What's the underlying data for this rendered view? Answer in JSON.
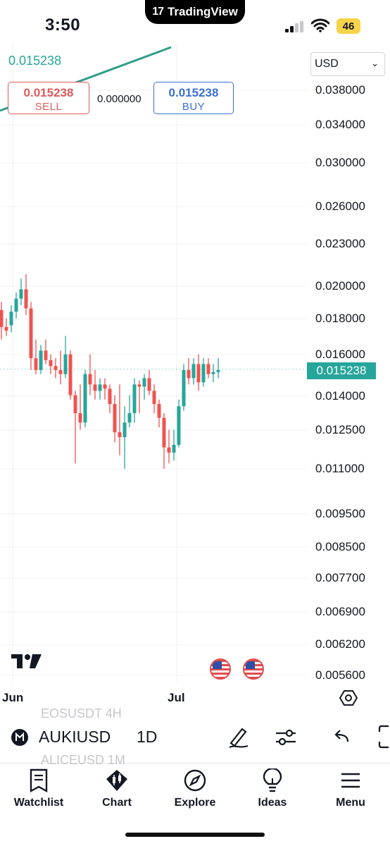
{
  "status_bar": {
    "time": "3:50",
    "app_name": "TradingView",
    "battery": "46"
  },
  "chart": {
    "currency": "USD",
    "price_axis": [
      "0.038000",
      "0.034000",
      "0.030000",
      "0.026000",
      "0.023000",
      "0.020000",
      "0.018000",
      "0.016000",
      "0.014000",
      "0.012500",
      "0.011000",
      "0.009500",
      "0.008500",
      "0.007700",
      "0.006900",
      "0.006200",
      "0.005600"
    ],
    "current_price": "0.015238",
    "line_price": "0.015238",
    "sell": {
      "price": "0.015238",
      "label": "SELL"
    },
    "buy": {
      "price": "0.015238",
      "label": "BUY"
    },
    "spread": "0.000000",
    "dates": [
      "Jun",
      "Jul"
    ],
    "colors": {
      "up": "#26a69a",
      "down": "#ef5350",
      "sell": "#e0595a",
      "buy": "#3a6fd8"
    }
  },
  "chart_data": {
    "type": "candlestick",
    "scale": "log",
    "candles": [
      {
        "o": 0.0185,
        "h": 0.019,
        "l": 0.0168,
        "c": 0.0175
      },
      {
        "o": 0.0175,
        "h": 0.018,
        "l": 0.017,
        "c": 0.0173
      },
      {
        "o": 0.0176,
        "h": 0.0188,
        "l": 0.0172,
        "c": 0.0184
      },
      {
        "o": 0.0184,
        "h": 0.0196,
        "l": 0.018,
        "c": 0.0192
      },
      {
        "o": 0.0192,
        "h": 0.0205,
        "l": 0.0188,
        "c": 0.0198
      },
      {
        "o": 0.0198,
        "h": 0.0208,
        "l": 0.0182,
        "c": 0.0186
      },
      {
        "o": 0.0186,
        "h": 0.019,
        "l": 0.0152,
        "c": 0.0158
      },
      {
        "o": 0.0158,
        "h": 0.0168,
        "l": 0.015,
        "c": 0.0152
      },
      {
        "o": 0.0152,
        "h": 0.0165,
        "l": 0.015,
        "c": 0.0162
      },
      {
        "o": 0.0162,
        "h": 0.0168,
        "l": 0.0155,
        "c": 0.0157
      },
      {
        "o": 0.0157,
        "h": 0.016,
        "l": 0.015,
        "c": 0.0154
      },
      {
        "o": 0.0154,
        "h": 0.0158,
        "l": 0.0148,
        "c": 0.0152
      },
      {
        "o": 0.0152,
        "h": 0.0162,
        "l": 0.0145,
        "c": 0.015
      },
      {
        "o": 0.015,
        "h": 0.017,
        "l": 0.0148,
        "c": 0.016
      },
      {
        "o": 0.016,
        "h": 0.0162,
        "l": 0.0138,
        "c": 0.014
      },
      {
        "o": 0.014,
        "h": 0.0142,
        "l": 0.0112,
        "c": 0.0132
      },
      {
        "o": 0.0132,
        "h": 0.0145,
        "l": 0.0125,
        "c": 0.0128
      },
      {
        "o": 0.0128,
        "h": 0.0152,
        "l": 0.0126,
        "c": 0.015
      },
      {
        "o": 0.015,
        "h": 0.016,
        "l": 0.014,
        "c": 0.0145
      },
      {
        "o": 0.0145,
        "h": 0.0152,
        "l": 0.0138,
        "c": 0.0142
      },
      {
        "o": 0.0142,
        "h": 0.0148,
        "l": 0.0138,
        "c": 0.0145
      },
      {
        "o": 0.0145,
        "h": 0.0148,
        "l": 0.0138,
        "c": 0.0143
      },
      {
        "o": 0.0143,
        "h": 0.0145,
        "l": 0.0132,
        "c": 0.0136
      },
      {
        "o": 0.0136,
        "h": 0.014,
        "l": 0.012,
        "c": 0.0124
      },
      {
        "o": 0.0124,
        "h": 0.0145,
        "l": 0.0115,
        "c": 0.0122
      },
      {
        "o": 0.0122,
        "h": 0.0135,
        "l": 0.011,
        "c": 0.0128
      },
      {
        "o": 0.0128,
        "h": 0.014,
        "l": 0.0126,
        "c": 0.0132
      },
      {
        "o": 0.0132,
        "h": 0.0148,
        "l": 0.0128,
        "c": 0.0145
      },
      {
        "o": 0.0145,
        "h": 0.0147,
        "l": 0.0132,
        "c": 0.0144
      },
      {
        "o": 0.0144,
        "h": 0.015,
        "l": 0.0138,
        "c": 0.0148
      },
      {
        "o": 0.0148,
        "h": 0.0152,
        "l": 0.014,
        "c": 0.0142
      },
      {
        "o": 0.0142,
        "h": 0.0145,
        "l": 0.0132,
        "c": 0.0136
      },
      {
        "o": 0.0136,
        "h": 0.0138,
        "l": 0.0126,
        "c": 0.013
      },
      {
        "o": 0.013,
        "h": 0.0132,
        "l": 0.011,
        "c": 0.0118
      },
      {
        "o": 0.0118,
        "h": 0.0125,
        "l": 0.0112,
        "c": 0.0116
      },
      {
        "o": 0.0116,
        "h": 0.0125,
        "l": 0.0113,
        "c": 0.0119
      },
      {
        "o": 0.0119,
        "h": 0.0138,
        "l": 0.0118,
        "c": 0.0135
      },
      {
        "o": 0.0135,
        "h": 0.0155,
        "l": 0.0133,
        "c": 0.0152
      },
      {
        "o": 0.0152,
        "h": 0.0158,
        "l": 0.0145,
        "c": 0.0148
      },
      {
        "o": 0.0148,
        "h": 0.0158,
        "l": 0.0145,
        "c": 0.0155
      },
      {
        "o": 0.0155,
        "h": 0.016,
        "l": 0.0142,
        "c": 0.0146
      },
      {
        "o": 0.0146,
        "h": 0.0158,
        "l": 0.0144,
        "c": 0.0155
      },
      {
        "o": 0.0155,
        "h": 0.0158,
        "l": 0.0148,
        "c": 0.015
      },
      {
        "o": 0.015,
        "h": 0.0155,
        "l": 0.0146,
        "c": 0.0151
      },
      {
        "o": 0.0151,
        "h": 0.0158,
        "l": 0.0148,
        "c": 0.0152
      }
    ],
    "x_labels": [
      "Jun",
      "Jul"
    ]
  },
  "symbol_bar": {
    "ghost_above": "EOSUSDT   4H",
    "ghost_below": "ALICEUSD   1M",
    "symbol": "AUKIUSD",
    "interval": "1D"
  },
  "nav": {
    "watchlist": "Watchlist",
    "chart": "Chart",
    "explore": "Explore",
    "ideas": "Ideas",
    "menu": "Menu"
  }
}
